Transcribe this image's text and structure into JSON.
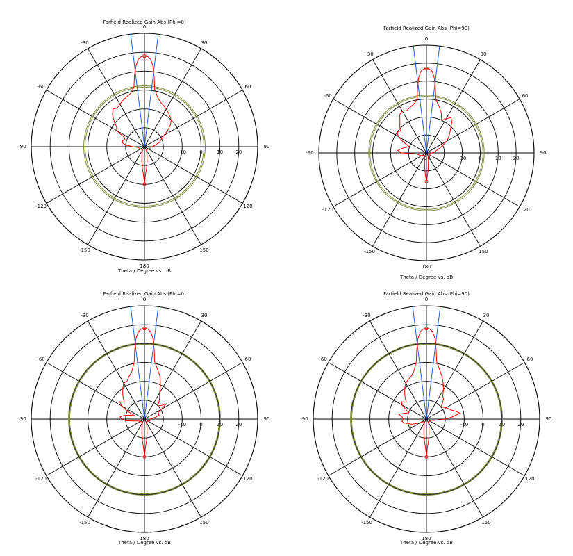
{
  "page": {
    "background": "#ffffff"
  },
  "style": {
    "grid_color": "#000000",
    "pattern_color": "#ff0000",
    "beam_line_color": "#1f5fd6",
    "ref_circle_color": "#7a8a3a"
  },
  "chart_data": [
    {
      "type": "polar-line",
      "title": "Farfield Realized Gain Abs (Phi=0)",
      "xlabel": "Theta / Degree vs. dB",
      "angle_ticks": [
        "0",
        "30",
        "60",
        "90",
        "120",
        "150",
        "180",
        "-150",
        "-120",
        "-90",
        "-60",
        "-30"
      ],
      "r_range": [
        -30,
        30
      ],
      "r_ticks": [
        "-10",
        "0",
        "10",
        "20"
      ],
      "r_tick_values": [
        -10,
        0,
        10,
        20
      ],
      "ref_circles_db": [
        1.5,
        2.2
      ],
      "beam_lines_deg": [
        -7,
        7
      ],
      "grid": true,
      "series": [
        {
          "theta_deg": [
            0,
            2,
            4,
            6,
            8,
            10,
            15,
            20,
            25,
            30,
            35,
            40,
            45,
            50,
            55,
            60,
            65,
            70,
            75,
            80,
            85,
            90,
            95,
            100,
            110,
            120,
            130,
            140,
            150,
            160,
            170,
            175,
            178,
            180,
            182,
            185,
            190,
            200,
            210,
            220,
            230,
            240,
            250,
            260,
            265,
            270,
            275,
            280,
            285,
            290,
            295,
            300,
            305,
            310,
            315,
            320,
            325,
            330,
            335,
            340,
            345,
            350,
            352,
            354,
            356,
            358,
            360
          ],
          "gain_db": [
            18,
            17.8,
            16.5,
            13,
            7,
            1,
            -3,
            -5,
            -6,
            -7,
            -8,
            -9,
            -10,
            -12,
            -15,
            -18,
            -20,
            -21,
            -22,
            -24,
            -25,
            -26,
            -27,
            -27,
            -27,
            -27,
            -28,
            -28,
            -28,
            -26,
            -22,
            -18,
            -15,
            -10,
            -15,
            -18,
            -22,
            -26,
            -28,
            -28,
            -28,
            -27,
            -27,
            -27,
            -26,
            -24,
            -20,
            -18,
            -18,
            -19,
            -18,
            -13,
            -12,
            -9,
            -6,
            -4,
            -5,
            -4,
            -3,
            -2,
            -1,
            2,
            8,
            13,
            16.5,
            17.8,
            18
          ]
        }
      ]
    },
    {
      "type": "polar-line",
      "title": "Farfield Realized Gain Abs (Phi=90)",
      "xlabel": "Theta / Degree vs. dB",
      "angle_ticks": [
        "0",
        "30",
        "60",
        "90",
        "120",
        "150",
        "180",
        "-150",
        "-120",
        "-90",
        "-60",
        "-30"
      ],
      "r_range": [
        -30,
        30
      ],
      "r_ticks": [
        "-30",
        "-10",
        "0",
        "10",
        "20"
      ],
      "r_tick_values": [
        -30,
        -10,
        0,
        10,
        20
      ],
      "ref_circles_db": [
        1.5,
        2.2
      ],
      "beam_lines_deg": [
        -7,
        7
      ],
      "grid": true,
      "series": [
        {
          "theta_deg": [
            0,
            2,
            4,
            6,
            8,
            10,
            15,
            20,
            25,
            30,
            35,
            40,
            45,
            50,
            55,
            60,
            65,
            70,
            75,
            80,
            85,
            90,
            95,
            100,
            110,
            120,
            130,
            140,
            150,
            160,
            170,
            175,
            178,
            180,
            182,
            185,
            190,
            200,
            210,
            220,
            230,
            240,
            250,
            260,
            265,
            270,
            275,
            280,
            285,
            290,
            295,
            300,
            305,
            310,
            315,
            320,
            325,
            330,
            335,
            340,
            345,
            350,
            352,
            354,
            356,
            358,
            360
          ],
          "gain_db": [
            17,
            16.8,
            15.5,
            12,
            6,
            0,
            -3,
            -6,
            -10,
            -8,
            -6,
            -8,
            -11,
            -13,
            -15,
            -17,
            -20,
            -22,
            -24,
            -25,
            -26,
            -27,
            -28,
            -28,
            -28,
            -28,
            -28,
            -28,
            -28,
            -27,
            -24,
            -20,
            -17,
            -14,
            -17,
            -20,
            -24,
            -27,
            -28,
            -28,
            -28,
            -27,
            -26,
            -25,
            -24,
            -16,
            -14,
            -16,
            -18,
            -20,
            -16,
            -12,
            -10,
            -11,
            -9,
            -7,
            -4,
            -3,
            -4,
            -3,
            -2,
            0,
            6,
            12,
            15.5,
            16.8,
            17
          ]
        }
      ]
    },
    {
      "type": "polar-line",
      "title": "Farfield Realized Gain Abs (Phi=0)",
      "xlabel": "Theta / Degree vs. dB",
      "angle_ticks": [
        "0",
        "30",
        "60",
        "90",
        "120",
        "150",
        "180",
        "-150",
        "-120",
        "-90",
        "-60",
        "-30"
      ],
      "r_range": [
        -30,
        30
      ],
      "r_ticks": [
        "-10",
        "0",
        "10",
        "20"
      ],
      "r_tick_values": [
        -10,
        0,
        10,
        20
      ],
      "ref_circles_db": [
        9.6,
        10.3
      ],
      "beam_lines_deg": [
        -7,
        7
      ],
      "grid": true,
      "series": [
        {
          "theta_deg": [
            0,
            2,
            4,
            6,
            8,
            10,
            15,
            20,
            25,
            30,
            35,
            40,
            45,
            50,
            55,
            60,
            65,
            70,
            75,
            80,
            85,
            90,
            95,
            100,
            110,
            120,
            130,
            140,
            150,
            160,
            170,
            175,
            178,
            180,
            182,
            185,
            190,
            200,
            210,
            220,
            230,
            240,
            250,
            260,
            265,
            270,
            275,
            280,
            285,
            290,
            295,
            300,
            305,
            310,
            315,
            320,
            325,
            330,
            335,
            340,
            345,
            350,
            352,
            354,
            356,
            358,
            360
          ],
          "gain_db": [
            18,
            17.8,
            16.5,
            13,
            7,
            1,
            -3,
            -6,
            -10,
            -14,
            -16,
            -18,
            -20,
            -19,
            -16,
            -20,
            -22,
            -22,
            -22,
            -24,
            -26,
            -27,
            -27,
            -27,
            -27,
            -28,
            -28,
            -28,
            -28,
            -26,
            -22,
            -18,
            -15,
            -10,
            -15,
            -18,
            -22,
            -26,
            -28,
            -28,
            -28,
            -27,
            -27,
            -24,
            -20,
            -18,
            -17,
            -19,
            -22,
            -24,
            -20,
            -16,
            -14,
            -16,
            -14,
            -12,
            -10,
            -8,
            -8,
            -6,
            -4,
            1,
            7,
            13,
            16.5,
            17.8,
            18
          ]
        }
      ]
    },
    {
      "type": "polar-line",
      "title": "Farfield Realized Gain Abs (Phi=90)",
      "xlabel": "Theta / Degree vs. dB",
      "angle_ticks": [
        "0",
        "30",
        "60",
        "90",
        "120",
        "150",
        "180",
        "-150",
        "-120",
        "-90",
        "-60",
        "-30"
      ],
      "r_range": [
        -30,
        30
      ],
      "r_ticks": [
        "-10",
        "0",
        "10",
        "20"
      ],
      "r_tick_values": [
        -10,
        0,
        10,
        20
      ],
      "ref_circles_db": [
        9.6,
        10.3
      ],
      "beam_lines_deg": [
        -7,
        7
      ],
      "grid": true,
      "series": [
        {
          "theta_deg": [
            0,
            2,
            4,
            6,
            8,
            10,
            15,
            20,
            25,
            30,
            35,
            40,
            45,
            50,
            55,
            60,
            65,
            70,
            75,
            80,
            85,
            90,
            95,
            100,
            110,
            120,
            130,
            140,
            150,
            160,
            170,
            175,
            178,
            180,
            182,
            185,
            190,
            200,
            210,
            220,
            230,
            240,
            250,
            260,
            265,
            270,
            275,
            280,
            285,
            290,
            295,
            300,
            305,
            310,
            315,
            320,
            325,
            330,
            335,
            340,
            345,
            350,
            352,
            354,
            356,
            358,
            360
          ],
          "gain_db": [
            18,
            17.8,
            16.5,
            13,
            7,
            1,
            -3,
            -6,
            -9,
            -12,
            -15,
            -16,
            -18,
            -20,
            -19,
            -18,
            -17,
            -16,
            -14,
            -12,
            -16,
            -20,
            -24,
            -26,
            -28,
            -28,
            -28,
            -28,
            -28,
            -26,
            -22,
            -18,
            -15,
            -10,
            -15,
            -18,
            -22,
            -26,
            -28,
            -28,
            -28,
            -26,
            -22,
            -18,
            -17,
            -18,
            -17,
            -15,
            -18,
            -20,
            -18,
            -15,
            -14,
            -16,
            -14,
            -12,
            -10,
            -8,
            -7,
            -6,
            -4,
            1,
            7,
            13,
            16.5,
            17.8,
            18
          ]
        }
      ]
    }
  ]
}
